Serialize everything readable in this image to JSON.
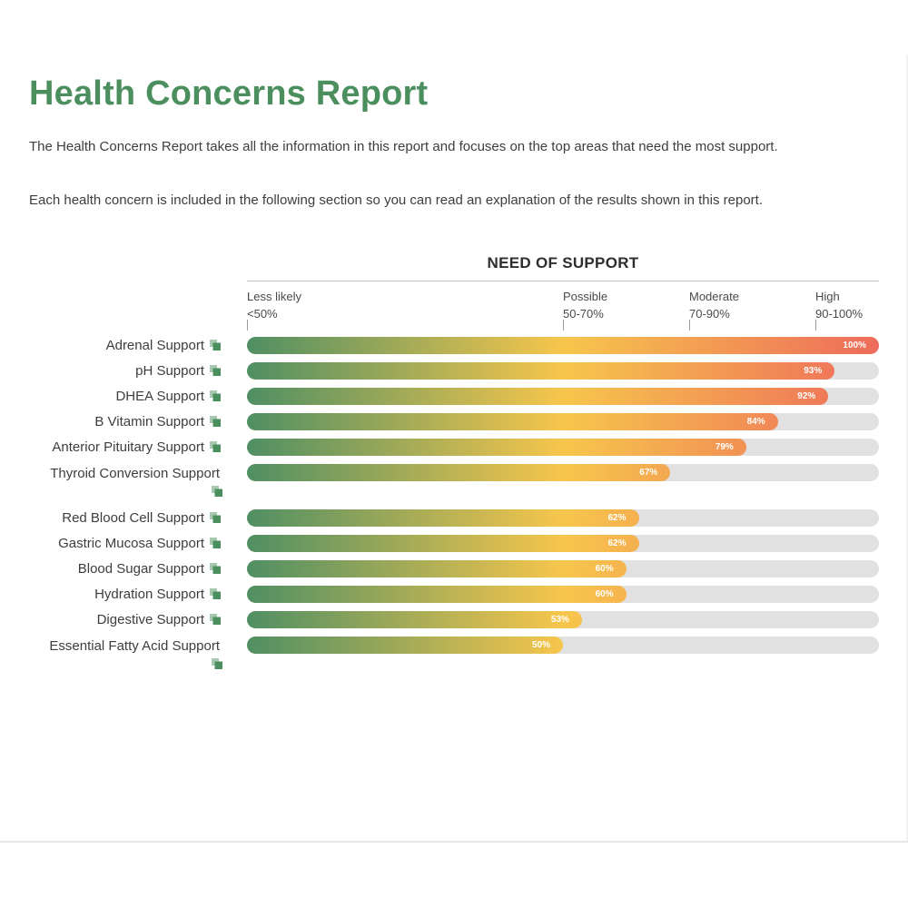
{
  "header": {
    "title": "Health Concerns Report"
  },
  "intro": {
    "paragraph_1": "The Health Concerns Report takes all the information in this report and focuses on the top areas that need the most support.",
    "paragraph_2": "Each health concern is included in the following section so you can read an explanation of the results shown in this report."
  },
  "chart_data": {
    "type": "bar",
    "orientation": "horizontal",
    "title": "NEED OF SUPPORT",
    "xlim": [
      0,
      100
    ],
    "zones": [
      {
        "name": "Less likely",
        "range": "<50%",
        "start": 0
      },
      {
        "name": "Possible",
        "range": "50-70%",
        "start": 50
      },
      {
        "name": "Moderate",
        "range": "70-90%",
        "start": 70
      },
      {
        "name": "High",
        "range": "90-100%",
        "start": 90
      }
    ],
    "categories": [
      "Adrenal Support",
      "pH Support",
      "DHEA Support",
      "B Vitamin Support",
      "Anterior Pituitary Support",
      "Thyroid Conversion Support",
      "Red Blood Cell Support",
      "Gastric Mucosa Support",
      "Blood Sugar Support",
      "Hydration Support",
      "Digestive Support",
      "Essential Fatty Acid Support"
    ],
    "values": [
      100,
      93,
      92,
      84,
      79,
      67,
      62,
      62,
      60,
      60,
      53,
      50
    ],
    "value_labels": [
      "100%",
      "93%",
      "92%",
      "84%",
      "79%",
      "67%",
      "62%",
      "62%",
      "60%",
      "60%",
      "53%",
      "50%"
    ],
    "icon": "external-link-icon",
    "colors": {
      "low": "#4f8f63",
      "mid": "#f7c64c",
      "high": "#ee6b5b",
      "track": "#e1e1e1",
      "accent": "#4c8f5f"
    }
  }
}
